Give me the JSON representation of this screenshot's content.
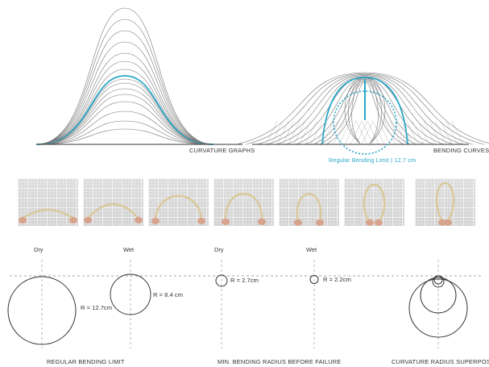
{
  "top": {
    "curvature_caption": "CURVATURE GRAPHS",
    "bending_caption": "BENDING CURVES",
    "limit_label": "Regular Bending Limit | 12.7 cm"
  },
  "photos": {
    "count": 7
  },
  "radius": {
    "columns": [
      {
        "label": "Dry",
        "r_label": "R = 12.7cm"
      },
      {
        "label": "Wet",
        "r_label": "R = 8.4 cm"
      },
      {
        "label": "Dry",
        "r_label": "R = 2.7cm"
      },
      {
        "label": "Wet",
        "r_label": "R = 2.2cm"
      }
    ],
    "captions": {
      "regular": "REGULAR BENDING LIMIT",
      "min": "MIN. BENDING RADIUS BEFORE FAILURE",
      "superposition": "CURVATURE RADIUS SUPERPOSITIC"
    }
  },
  "colors": {
    "accent": "#2aa7c7",
    "line": "#555555",
    "thin": "#8a8a8a"
  }
}
